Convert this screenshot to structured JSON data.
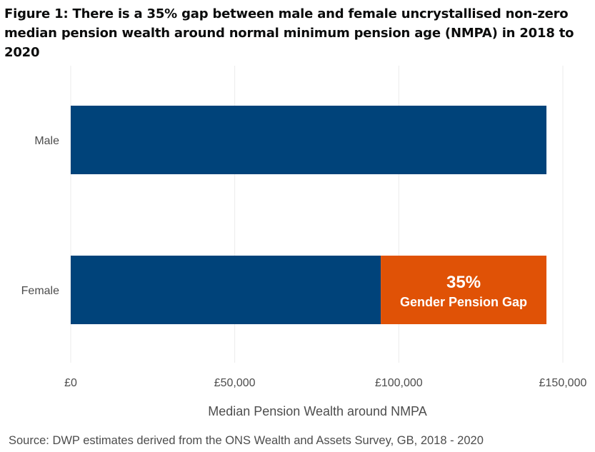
{
  "figure": {
    "title": "Figure 1: There is a 35% gap between male and female uncrystallised non-zero median pension wealth around normal minimum pension age (NMPA) in 2018 to 2020",
    "source": "Source: DWP estimates derived from the ONS Wealth and Assets Survey, GB, 2018 - 2020"
  },
  "colors": {
    "bar": "#00437a",
    "gap": "#e05206",
    "grid": "#ebebeb",
    "text": "#4d4d4d"
  },
  "chart_data": {
    "type": "bar",
    "orientation": "horizontal",
    "stacked": true,
    "title": "Figure 1: There is a 35% gap between male and female uncrystallised non-zero median pension wealth around normal minimum pension age (NMPA) in 2018 to 2020",
    "xlabel": "Median Pension Wealth around NMPA",
    "ylabel": "",
    "categories": [
      "Male",
      "Female"
    ],
    "series": [
      {
        "values": [
          145000,
          94500
        ],
        "color": "#00437a"
      },
      {
        "values": [
          0,
          50500
        ],
        "color": "#e05206"
      }
    ],
    "xlim": [
      0,
      150000
    ],
    "xticks": [
      0,
      50000,
      100000,
      150000
    ],
    "xtick_labels": [
      "£0",
      "£50,000",
      "£100,000",
      "£150,000"
    ],
    "annotations": [
      {
        "category": "Female",
        "line1": "35%",
        "line2": "Gender Pension Gap"
      }
    ],
    "grid": true,
    "legend": "none"
  }
}
